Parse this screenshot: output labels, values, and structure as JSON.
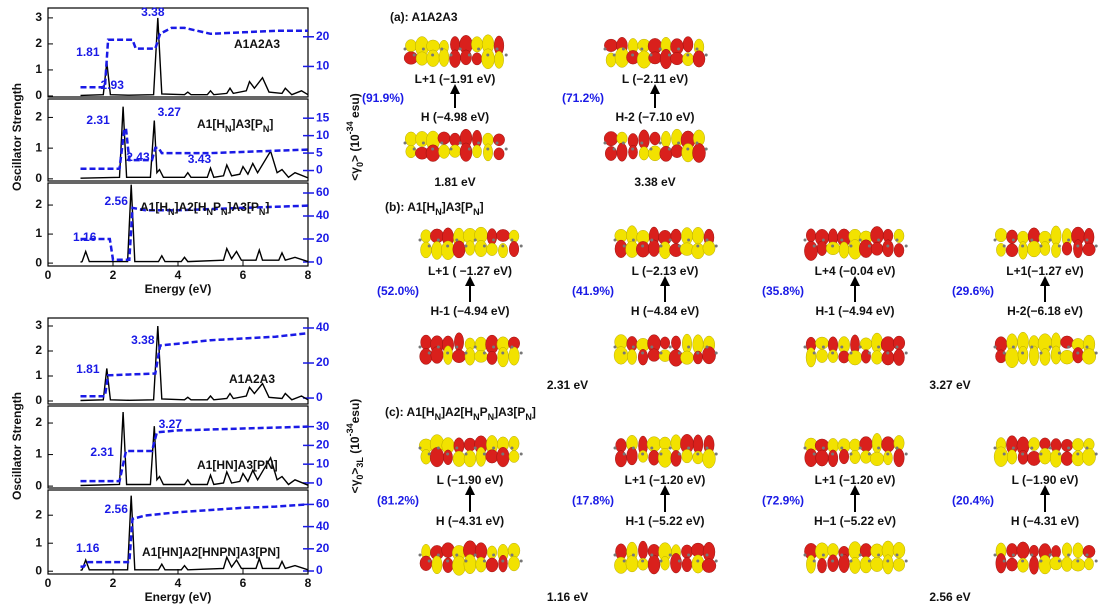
{
  "chart_data": [
    {
      "type": "line",
      "label": [
        "A1A2A3"
      ],
      "xlim": [
        0,
        8
      ],
      "ylim": [
        -0.04,
        3.38
      ],
      "yticks": [
        0,
        1,
        2,
        3
      ],
      "y2lim": [
        -0.3,
        29.7
      ],
      "y2ticks": [
        10,
        20
      ],
      "peak_labels": [
        1.81,
        2.93,
        3.38
      ],
      "series": [
        {
          "color": "#000000",
          "x": [
            1,
            1.7,
            1.81,
            1.92,
            2.5,
            3.25,
            3.38,
            3.5,
            4.2,
            4.3,
            4.4,
            4.9,
            5.0,
            5.1,
            5.5,
            5.6,
            5.7,
            6.1,
            6.2,
            6.35,
            6.6,
            6.8,
            7.2,
            7.3,
            7.5,
            7.8,
            8
          ],
          "values": [
            0.02,
            0.05,
            1.3,
            0.05,
            0.03,
            0.05,
            3.0,
            0.08,
            0.05,
            0.15,
            0.05,
            0.05,
            0.2,
            0.05,
            0.1,
            0.3,
            0.1,
            0.2,
            0.55,
            0.3,
            0.7,
            0.15,
            0.1,
            0.3,
            0.05,
            0.2,
            0.05
          ]
        },
        {
          "color": "#1a1ae6",
          "axis": "y2",
          "dashed": true,
          "x": [
            1,
            1.75,
            1.85,
            2.6,
            2.7,
            3.3,
            3.45,
            3.8,
            4.2,
            5,
            6,
            7,
            8
          ],
          "values": [
            3,
            3,
            19,
            19,
            16,
            16,
            21,
            23,
            23,
            21,
            21.5,
            22,
            22
          ]
        }
      ]
    },
    {
      "type": "line",
      "label": [
        "A1[H",
        "N",
        "]A3[P",
        "N",
        "]"
      ],
      "xlim": [
        0,
        8
      ],
      "ylim": [
        -0.07,
        2.6
      ],
      "yticks": [
        0,
        1,
        2
      ],
      "y2lim": [
        -3,
        20.5
      ],
      "y2ticks": [
        0,
        5,
        10,
        15
      ],
      "peak_labels": [
        2.31,
        2.43,
        3.27,
        3.43
      ],
      "ylabel": "Oscillator Strength",
      "y2label": [
        "<γ",
        "0",
        "> (10",
        "-34",
        " esu)"
      ],
      "series": [
        {
          "color": "#000000",
          "x": [
            1,
            2.2,
            2.31,
            2.42,
            3.15,
            3.27,
            3.35,
            3.43,
            3.55,
            4.2,
            4.3,
            4.4,
            4.9,
            5.0,
            5.1,
            5.4,
            5.5,
            5.65,
            5.9,
            6.0,
            6.15,
            6.3,
            6.45,
            6.85,
            7.05,
            7.2,
            7.4,
            7.6,
            8
          ],
          "values": [
            0.02,
            0.05,
            2.35,
            0.05,
            0.05,
            1.9,
            0.2,
            0.3,
            0.05,
            0.05,
            0.2,
            0.05,
            0.05,
            0.35,
            0.05,
            0.1,
            0.45,
            0.1,
            0.15,
            0.4,
            0.15,
            0.5,
            0.2,
            0.9,
            0.2,
            0.3,
            0.05,
            0.2,
            0.03
          ]
        },
        {
          "color": "#1a1ae6",
          "axis": "y2",
          "dashed": true,
          "x": [
            1,
            2.2,
            2.35,
            2.4,
            2.5,
            3.2,
            3.3,
            3.4,
            3.5,
            5,
            6.5,
            8
          ],
          "values": [
            0.5,
            0.5,
            12,
            12,
            3,
            3,
            6.5,
            6.5,
            5,
            5,
            5.5,
            6
          ]
        }
      ]
    },
    {
      "type": "line",
      "label": [
        "A1[H",
        "N",
        "]A2[H",
        "N",
        "P",
        "N",
        "]A3[P",
        "N",
        "]"
      ],
      "xlim": [
        0,
        8
      ],
      "ylim": [
        -0.1,
        2.76
      ],
      "yticks": [
        0,
        1,
        2
      ],
      "y2lim": [
        -3.5,
        68.7
      ],
      "y2ticks": [
        0,
        20,
        40,
        60
      ],
      "peak_labels": [
        1.16,
        2.56
      ],
      "xticks": [
        0,
        2,
        4,
        6,
        8
      ],
      "xlabel": "Energy (eV)",
      "series": [
        {
          "color": "#000000",
          "x": [
            1,
            1.05,
            1.16,
            1.27,
            2.45,
            2.56,
            2.67,
            3.4,
            3.5,
            3.6,
            4.1,
            4.2,
            4.3,
            5.4,
            5.5,
            5.65,
            5.8,
            5.95,
            6.4,
            6.5,
            6.6,
            7.1,
            7.2,
            7.3,
            7.6,
            8
          ],
          "values": [
            0.03,
            0.05,
            0.4,
            0.05,
            0.05,
            2.7,
            0.05,
            0.05,
            0.25,
            0.05,
            0.05,
            0.2,
            0.05,
            0.1,
            0.5,
            0.15,
            0.4,
            0.1,
            0.1,
            0.45,
            0.1,
            0.1,
            0.35,
            0.1,
            0.2,
            0.05
          ]
        },
        {
          "color": "#1a1ae6",
          "axis": "y2",
          "dashed": true,
          "x": [
            1,
            1.1,
            1.2,
            1.9,
            2.0,
            2.5,
            2.6,
            3,
            4,
            5,
            6,
            7,
            8
          ],
          "values": [
            20,
            20,
            20,
            20,
            2,
            2,
            47,
            45,
            45,
            46,
            47,
            48,
            49
          ]
        }
      ]
    },
    {
      "type": "line",
      "label": [
        "A1A2A3"
      ],
      "xlim": [
        0,
        8
      ],
      "ylim": [
        -0.12,
        3.32
      ],
      "yticks": [
        0,
        1,
        2,
        3
      ],
      "y2lim": [
        -3.4,
        45.7
      ],
      "y2ticks": [
        0,
        20,
        40
      ],
      "peak_labels": [
        1.81,
        3.38
      ],
      "series": [
        {
          "color": "#000000",
          "x": [
            1,
            1.7,
            1.81,
            1.92,
            2.5,
            3.25,
            3.38,
            3.5,
            4.2,
            4.3,
            4.4,
            4.9,
            5.0,
            5.1,
            5.5,
            5.6,
            5.7,
            6.1,
            6.2,
            6.35,
            6.6,
            6.8,
            7.2,
            7.3,
            7.5,
            7.8,
            8
          ],
          "values": [
            0.02,
            0.05,
            1.3,
            0.05,
            0.03,
            0.05,
            3.0,
            0.08,
            0.05,
            0.15,
            0.05,
            0.05,
            0.2,
            0.05,
            0.1,
            0.3,
            0.1,
            0.2,
            0.55,
            0.3,
            0.7,
            0.15,
            0.1,
            0.3,
            0.05,
            0.2,
            0.05
          ]
        },
        {
          "color": "#1a1ae6",
          "axis": "y2",
          "dashed": true,
          "x": [
            1,
            1.75,
            1.85,
            3.3,
            3.45,
            4,
            5,
            6,
            7,
            8
          ],
          "values": [
            1,
            1,
            13,
            14,
            30,
            31,
            33,
            34,
            35,
            37
          ]
        }
      ]
    },
    {
      "type": "line",
      "label": [
        "A1[HN]A3[PN]"
      ],
      "xlim": [
        0,
        8
      ],
      "ylim": [
        -0.06,
        2.54
      ],
      "yticks": [
        0,
        1,
        2
      ],
      "y2lim": [
        -2.7,
        41
      ],
      "y2ticks": [
        0,
        10,
        20,
        30
      ],
      "peak_labels": [
        2.31,
        3.27
      ],
      "ylabel": "Oscillator Strength",
      "y2label": [
        "<γ",
        "0",
        ">",
        "3L",
        " (10",
        "-34",
        "esu)"
      ],
      "series": [
        {
          "color": "#000000",
          "x": [
            1,
            2.2,
            2.31,
            2.42,
            3.15,
            3.27,
            3.35,
            3.43,
            3.55,
            4.2,
            4.3,
            4.4,
            4.9,
            5.0,
            5.1,
            5.4,
            5.5,
            5.65,
            5.9,
            6.0,
            6.15,
            6.3,
            6.45,
            6.85,
            7.05,
            7.2,
            7.4,
            7.6,
            8
          ],
          "values": [
            0.02,
            0.05,
            2.35,
            0.05,
            0.05,
            1.9,
            0.2,
            0.3,
            0.05,
            0.05,
            0.2,
            0.05,
            0.05,
            0.35,
            0.05,
            0.1,
            0.45,
            0.1,
            0.15,
            0.4,
            0.15,
            0.5,
            0.2,
            0.9,
            0.2,
            0.3,
            0.05,
            0.2,
            0.03
          ]
        },
        {
          "color": "#1a1ae6",
          "axis": "y2",
          "dashed": true,
          "x": [
            1,
            2.2,
            2.4,
            3.2,
            3.35,
            4,
            5,
            6,
            7,
            8
          ],
          "values": [
            1,
            1,
            17,
            17,
            27,
            28,
            28.5,
            29,
            29.5,
            30
          ]
        }
      ]
    },
    {
      "type": "line",
      "label": [
        "A1[HN]A2[HNPN]A3[PN]"
      ],
      "xlim": [
        0,
        8
      ],
      "ylim": [
        -0.1,
        2.9
      ],
      "yticks": [
        0,
        1,
        2
      ],
      "y2lim": [
        -2.7,
        73
      ],
      "y2ticks": [
        0,
        20,
        40,
        60
      ],
      "peak_labels": [
        1.16,
        2.56
      ],
      "xticks": [
        0,
        2,
        4,
        6,
        8
      ],
      "xlabel": "Energy (eV)",
      "series": [
        {
          "color": "#000000",
          "x": [
            1,
            1.05,
            1.16,
            1.27,
            2.45,
            2.56,
            2.67,
            3.4,
            3.5,
            3.6,
            4.1,
            4.2,
            4.3,
            5.4,
            5.5,
            5.65,
            5.8,
            5.95,
            6.4,
            6.5,
            6.6,
            7.1,
            7.2,
            7.3,
            7.6,
            8
          ],
          "values": [
            0.03,
            0.05,
            0.4,
            0.05,
            0.05,
            2.7,
            0.05,
            0.05,
            0.25,
            0.05,
            0.05,
            0.2,
            0.05,
            0.1,
            0.5,
            0.15,
            0.4,
            0.1,
            0.1,
            0.45,
            0.1,
            0.1,
            0.35,
            0.1,
            0.2,
            0.05
          ]
        },
        {
          "color": "#1a1ae6",
          "axis": "y2",
          "dashed": true,
          "x": [
            1,
            1.1,
            1.2,
            2.5,
            2.6,
            3,
            4,
            5,
            6,
            7,
            8
          ],
          "values": [
            4,
            4,
            8,
            8,
            47,
            50,
            53,
            55,
            57,
            58,
            60
          ]
        }
      ]
    }
  ],
  "transitions": [
    {
      "title": [
        "(a): A1A2A3"
      ],
      "groups": [
        {
          "energy": "1.81 eV",
          "items": [
            {
              "weight": "(91.9%)",
              "upper": "L+1 (−1.91 eV)",
              "lower": "H (−4.98 eV)"
            }
          ]
        },
        {
          "energy": "3.38 eV",
          "items": [
            {
              "weight": "(71.2%)",
              "upper": "L  (−2.11 eV)",
              "lower": "H-2 (−7.10 eV)"
            }
          ]
        }
      ]
    },
    {
      "title": [
        "(b): A1[H",
        "N",
        "]A3[P",
        "N",
        "]"
      ],
      "groups": [
        {
          "energy": "2.31 eV",
          "items": [
            {
              "weight": "(52.0%)",
              "upper": "L+1 ( −1.27 eV)",
              "lower": "H-1 (−4.94 eV)"
            },
            {
              "weight": "(41.9%)",
              "upper": "L (−2.13 eV)",
              "lower": "H (−4.84 eV)"
            }
          ]
        },
        {
          "energy": "3.27 eV",
          "items": [
            {
              "weight": "(35.8%)",
              "upper": "L+4 (−0.04 eV)",
              "lower": "H-1 (−4.94 eV)"
            },
            {
              "weight": "(29.6%)",
              "upper": "L+1(−1.27 eV)",
              "lower": "H-2(−6.18 eV)"
            }
          ]
        }
      ]
    },
    {
      "title": [
        "(c): A1[H",
        "N",
        "]A2[H",
        "N",
        "P",
        "N",
        "]A3[P",
        "N",
        "]"
      ],
      "groups": [
        {
          "energy": "1.16 eV",
          "items": [
            {
              "weight": "(81.2%)",
              "upper": "L (−1.90 eV)",
              "lower": "H (−4.31 eV)"
            },
            {
              "weight": "(17.8%)",
              "upper": "L+1 (−1.20 eV)",
              "lower": "H-1 (−5.22 eV)"
            }
          ]
        },
        {
          "energy": "2.56 eV",
          "items": [
            {
              "weight": "(72.9%)",
              "upper": "L+1 (−1.20 eV)",
              "lower": "H−1 (−5.22 eV)"
            },
            {
              "weight": "(20.4%)",
              "upper": "L (−1.90 eV)",
              "lower": "H (−4.31 eV)"
            }
          ]
        }
      ]
    }
  ]
}
